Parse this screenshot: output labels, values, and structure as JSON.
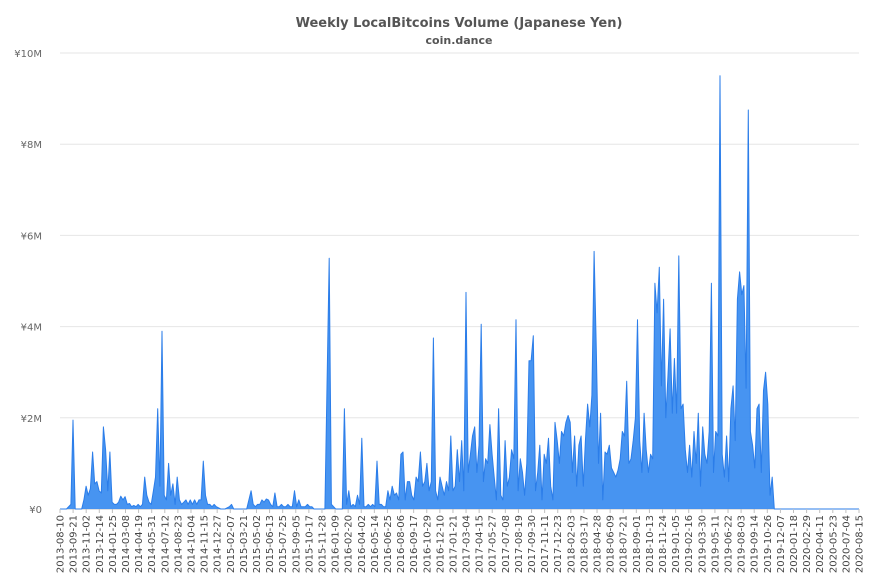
{
  "chart_data": {
    "type": "area",
    "title": "Weekly LocalBitcoins Volume (Japanese Yen)",
    "subtitle": "coin.dance",
    "xlabel": "",
    "ylabel": "",
    "ylim": [
      0,
      10000000
    ],
    "y_ticks": [
      {
        "value": 0,
        "label": "¥0"
      },
      {
        "value": 2000000,
        "label": "¥2M"
      },
      {
        "value": 4000000,
        "label": "¥4M"
      },
      {
        "value": 6000000,
        "label": "¥6M"
      },
      {
        "value": 8000000,
        "label": "¥8M"
      },
      {
        "value": 10000000,
        "label": "¥10M"
      }
    ],
    "x_start": "2013-08-10",
    "x_end": "2020-08-29",
    "x_tick_labels": [
      "2013-08-10",
      "2013-09-21",
      "2013-11-02",
      "2013-12-14",
      "2014-01-25",
      "2014-03-08",
      "2014-04-19",
      "2014-05-31",
      "2014-07-12",
      "2014-08-23",
      "2014-10-04",
      "2014-11-15",
      "2014-12-27",
      "2015-02-07",
      "2015-03-21",
      "2015-05-02",
      "2015-06-13",
      "2015-07-25",
      "2015-09-05",
      "2015-10-17",
      "2015-11-28",
      "2016-01-09",
      "2016-02-20",
      "2016-04-02",
      "2016-05-14",
      "2016-06-25",
      "2016-08-06",
      "2016-09-17",
      "2016-10-29",
      "2016-12-10",
      "2017-01-21",
      "2017-03-04",
      "2017-04-15",
      "2017-05-27",
      "2017-07-08",
      "2017-08-19",
      "2017-09-30",
      "2017-11-11",
      "2017-12-23",
      "2018-02-03",
      "2018-03-17",
      "2018-04-28",
      "2018-06-09",
      "2018-07-21",
      "2018-09-01",
      "2018-10-13",
      "2018-11-24",
      "2019-01-05",
      "2019-02-16",
      "2019-03-30",
      "2019-05-11",
      "2019-06-22",
      "2019-08-03",
      "2019-09-14",
      "2019-10-26",
      "2019-12-07",
      "2020-01-18",
      "2020-02-29",
      "2020-04-11",
      "2020-05-23",
      "2020-07-04",
      "2020-08-15"
    ],
    "series_color": "#3d8ef0",
    "points": [
      [
        "2013-08-10",
        0
      ],
      [
        "2013-08-31",
        0
      ],
      [
        "2013-09-14",
        100000
      ],
      [
        "2013-09-21",
        1950000
      ],
      [
        "2013-09-28",
        0
      ],
      [
        "2013-10-19",
        0
      ],
      [
        "2013-10-26",
        200000
      ],
      [
        "2013-11-02",
        500000
      ],
      [
        "2013-11-09",
        300000
      ],
      [
        "2013-11-16",
        450000
      ],
      [
        "2013-11-23",
        1250000
      ],
      [
        "2013-11-30",
        550000
      ],
      [
        "2013-12-07",
        600000
      ],
      [
        "2013-12-14",
        400000
      ],
      [
        "2013-12-21",
        350000
      ],
      [
        "2013-12-28",
        1800000
      ],
      [
        "2014-01-04",
        1300000
      ],
      [
        "2014-01-11",
        400000
      ],
      [
        "2014-01-18",
        1250000
      ],
      [
        "2014-01-25",
        150000
      ],
      [
        "2014-02-01",
        100000
      ],
      [
        "2014-02-08",
        100000
      ],
      [
        "2014-02-15",
        150000
      ],
      [
        "2014-02-22",
        280000
      ],
      [
        "2014-03-01",
        200000
      ],
      [
        "2014-03-08",
        270000
      ],
      [
        "2014-03-15",
        100000
      ],
      [
        "2014-03-22",
        120000
      ],
      [
        "2014-03-29",
        50000
      ],
      [
        "2014-04-05",
        80000
      ],
      [
        "2014-04-12",
        50000
      ],
      [
        "2014-04-19",
        100000
      ],
      [
        "2014-04-26",
        50000
      ],
      [
        "2014-05-03",
        100000
      ],
      [
        "2014-05-10",
        700000
      ],
      [
        "2014-05-17",
        300000
      ],
      [
        "2014-05-24",
        150000
      ],
      [
        "2014-05-31",
        100000
      ],
      [
        "2014-06-07",
        400000
      ],
      [
        "2014-06-14",
        700000
      ],
      [
        "2014-06-21",
        2200000
      ],
      [
        "2014-06-28",
        500000
      ],
      [
        "2014-07-05",
        3900000
      ],
      [
        "2014-07-12",
        300000
      ],
      [
        "2014-07-19",
        200000
      ],
      [
        "2014-07-26",
        1000000
      ],
      [
        "2014-08-02",
        300000
      ],
      [
        "2014-08-09",
        550000
      ],
      [
        "2014-08-16",
        100000
      ],
      [
        "2014-08-23",
        700000
      ],
      [
        "2014-08-30",
        200000
      ],
      [
        "2014-09-06",
        100000
      ],
      [
        "2014-09-13",
        150000
      ],
      [
        "2014-09-20",
        200000
      ],
      [
        "2014-09-27",
        100000
      ],
      [
        "2014-10-04",
        200000
      ],
      [
        "2014-10-11",
        100000
      ],
      [
        "2014-10-18",
        200000
      ],
      [
        "2014-10-25",
        100000
      ],
      [
        "2014-11-01",
        200000
      ],
      [
        "2014-11-08",
        200000
      ],
      [
        "2014-11-15",
        1050000
      ],
      [
        "2014-11-22",
        300000
      ],
      [
        "2014-11-29",
        100000
      ],
      [
        "2014-12-06",
        100000
      ],
      [
        "2014-12-13",
        50000
      ],
      [
        "2014-12-20",
        100000
      ],
      [
        "2014-12-27",
        50000
      ],
      [
        "2015-01-10",
        0
      ],
      [
        "2015-01-24",
        0
      ],
      [
        "2015-02-07",
        50000
      ],
      [
        "2015-02-14",
        100000
      ],
      [
        "2015-02-21",
        0
      ],
      [
        "2015-03-07",
        0
      ],
      [
        "2015-03-21",
        0
      ],
      [
        "2015-04-04",
        0
      ],
      [
        "2015-04-18",
        400000
      ],
      [
        "2015-04-25",
        100000
      ],
      [
        "2015-05-02",
        50000
      ],
      [
        "2015-05-09",
        100000
      ],
      [
        "2015-05-16",
        100000
      ],
      [
        "2015-05-23",
        200000
      ],
      [
        "2015-05-30",
        150000
      ],
      [
        "2015-06-06",
        220000
      ],
      [
        "2015-06-13",
        200000
      ],
      [
        "2015-06-20",
        100000
      ],
      [
        "2015-06-27",
        50000
      ],
      [
        "2015-07-04",
        350000
      ],
      [
        "2015-07-11",
        50000
      ],
      [
        "2015-07-18",
        50000
      ],
      [
        "2015-07-25",
        100000
      ],
      [
        "2015-08-01",
        50000
      ],
      [
        "2015-08-08",
        50000
      ],
      [
        "2015-08-15",
        100000
      ],
      [
        "2015-08-22",
        50000
      ],
      [
        "2015-08-29",
        50000
      ],
      [
        "2015-09-05",
        400000
      ],
      [
        "2015-09-12",
        50000
      ],
      [
        "2015-09-19",
        200000
      ],
      [
        "2015-09-26",
        50000
      ],
      [
        "2015-10-03",
        50000
      ],
      [
        "2015-10-10",
        50000
      ],
      [
        "2015-10-17",
        100000
      ],
      [
        "2015-10-24",
        50000
      ],
      [
        "2015-10-31",
        50000
      ],
      [
        "2015-11-07",
        0
      ],
      [
        "2015-11-28",
        0
      ],
      [
        "2015-12-12",
        0
      ],
      [
        "2015-12-26",
        5500000
      ],
      [
        "2016-01-02",
        100000
      ],
      [
        "2016-01-16",
        0
      ],
      [
        "2016-02-06",
        0
      ],
      [
        "2016-02-13",
        2200000
      ],
      [
        "2016-02-20",
        100000
      ],
      [
        "2016-02-27",
        400000
      ],
      [
        "2016-03-05",
        50000
      ],
      [
        "2016-03-12",
        100000
      ],
      [
        "2016-03-19",
        50000
      ],
      [
        "2016-03-26",
        300000
      ],
      [
        "2016-04-02",
        100000
      ],
      [
        "2016-04-09",
        1550000
      ],
      [
        "2016-04-16",
        50000
      ],
      [
        "2016-04-23",
        50000
      ],
      [
        "2016-04-30",
        100000
      ],
      [
        "2016-05-07",
        50000
      ],
      [
        "2016-05-14",
        100000
      ],
      [
        "2016-05-21",
        50000
      ],
      [
        "2016-05-28",
        1050000
      ],
      [
        "2016-06-04",
        100000
      ],
      [
        "2016-06-11",
        100000
      ],
      [
        "2016-06-18",
        50000
      ],
      [
        "2016-06-25",
        50000
      ],
      [
        "2016-07-02",
        400000
      ],
      [
        "2016-07-09",
        200000
      ],
      [
        "2016-07-16",
        500000
      ],
      [
        "2016-07-23",
        300000
      ],
      [
        "2016-07-30",
        350000
      ],
      [
        "2016-08-06",
        200000
      ],
      [
        "2016-08-13",
        1200000
      ],
      [
        "2016-08-20",
        1250000
      ],
      [
        "2016-08-27",
        200000
      ],
      [
        "2016-09-03",
        600000
      ],
      [
        "2016-09-10",
        600000
      ],
      [
        "2016-09-17",
        300000
      ],
      [
        "2016-09-24",
        200000
      ],
      [
        "2016-10-01",
        700000
      ],
      [
        "2016-10-08",
        600000
      ],
      [
        "2016-10-15",
        1250000
      ],
      [
        "2016-10-22",
        500000
      ],
      [
        "2016-10-29",
        600000
      ],
      [
        "2016-11-05",
        1000000
      ],
      [
        "2016-11-12",
        400000
      ],
      [
        "2016-11-19",
        600000
      ],
      [
        "2016-11-26",
        3750000
      ],
      [
        "2016-12-03",
        400000
      ],
      [
        "2016-12-10",
        200000
      ],
      [
        "2016-12-17",
        700000
      ],
      [
        "2016-12-24",
        500000
      ],
      [
        "2016-12-31",
        300000
      ],
      [
        "2017-01-07",
        600000
      ],
      [
        "2017-01-14",
        400000
      ],
      [
        "2017-01-21",
        1600000
      ],
      [
        "2017-01-28",
        400000
      ],
      [
        "2017-02-04",
        500000
      ],
      [
        "2017-02-11",
        1300000
      ],
      [
        "2017-02-18",
        600000
      ],
      [
        "2017-02-25",
        1500000
      ],
      [
        "2017-03-04",
        400000
      ],
      [
        "2017-03-11",
        4750000
      ],
      [
        "2017-03-18",
        800000
      ],
      [
        "2017-03-25",
        1200000
      ],
      [
        "2017-04-01",
        1600000
      ],
      [
        "2017-04-08",
        1800000
      ],
      [
        "2017-04-15",
        800000
      ],
      [
        "2017-04-22",
        1400000
      ],
      [
        "2017-04-29",
        4050000
      ],
      [
        "2017-05-06",
        600000
      ],
      [
        "2017-05-13",
        1100000
      ],
      [
        "2017-05-20",
        1000000
      ],
      [
        "2017-05-27",
        1850000
      ],
      [
        "2017-06-03",
        1200000
      ],
      [
        "2017-06-10",
        700000
      ],
      [
        "2017-06-17",
        200000
      ],
      [
        "2017-06-24",
        2200000
      ],
      [
        "2017-07-01",
        300000
      ],
      [
        "2017-07-08",
        200000
      ],
      [
        "2017-07-15",
        1500000
      ],
      [
        "2017-07-22",
        500000
      ],
      [
        "2017-07-29",
        700000
      ],
      [
        "2017-08-05",
        1300000
      ],
      [
        "2017-08-12",
        1100000
      ],
      [
        "2017-08-19",
        4150000
      ],
      [
        "2017-08-26",
        400000
      ],
      [
        "2017-09-02",
        1100000
      ],
      [
        "2017-09-09",
        800000
      ],
      [
        "2017-09-16",
        300000
      ],
      [
        "2017-09-23",
        1000000
      ],
      [
        "2017-09-30",
        3250000
      ],
      [
        "2017-10-07",
        3250000
      ],
      [
        "2017-10-14",
        3800000
      ],
      [
        "2017-10-21",
        400000
      ],
      [
        "2017-10-28",
        800000
      ],
      [
        "2017-11-04",
        1400000
      ],
      [
        "2017-11-11",
        200000
      ],
      [
        "2017-11-18",
        1200000
      ],
      [
        "2017-11-25",
        1000000
      ],
      [
        "2017-12-02",
        1550000
      ],
      [
        "2017-12-09",
        500000
      ],
      [
        "2017-12-16",
        200000
      ],
      [
        "2017-12-23",
        1900000
      ],
      [
        "2017-12-30",
        1500000
      ],
      [
        "2018-01-06",
        1000000
      ],
      [
        "2018-01-13",
        1700000
      ],
      [
        "2018-01-20",
        1600000
      ],
      [
        "2018-01-27",
        1900000
      ],
      [
        "2018-02-03",
        2050000
      ],
      [
        "2018-02-10",
        1900000
      ],
      [
        "2018-02-17",
        800000
      ],
      [
        "2018-02-24",
        1600000
      ],
      [
        "2018-03-03",
        500000
      ],
      [
        "2018-03-10",
        1400000
      ],
      [
        "2018-03-17",
        1600000
      ],
      [
        "2018-03-24",
        500000
      ],
      [
        "2018-03-31",
        1500000
      ],
      [
        "2018-04-07",
        2300000
      ],
      [
        "2018-04-14",
        1800000
      ],
      [
        "2018-04-21",
        2500000
      ],
      [
        "2018-04-28",
        5650000
      ],
      [
        "2018-05-05",
        3500000
      ],
      [
        "2018-05-12",
        1000000
      ],
      [
        "2018-05-19",
        2100000
      ],
      [
        "2018-05-26",
        200000
      ],
      [
        "2018-06-02",
        1250000
      ],
      [
        "2018-06-09",
        1200000
      ],
      [
        "2018-06-16",
        1400000
      ],
      [
        "2018-06-23",
        900000
      ],
      [
        "2018-06-30",
        800000
      ],
      [
        "2018-07-07",
        700000
      ],
      [
        "2018-07-14",
        850000
      ],
      [
        "2018-07-21",
        1100000
      ],
      [
        "2018-07-28",
        1700000
      ],
      [
        "2018-08-04",
        1600000
      ],
      [
        "2018-08-11",
        2800000
      ],
      [
        "2018-08-18",
        1000000
      ],
      [
        "2018-08-25",
        1100000
      ],
      [
        "2018-09-01",
        1500000
      ],
      [
        "2018-09-08",
        2000000
      ],
      [
        "2018-09-15",
        4150000
      ],
      [
        "2018-09-22",
        1500000
      ],
      [
        "2018-09-29",
        800000
      ],
      [
        "2018-10-06",
        2100000
      ],
      [
        "2018-10-13",
        1300000
      ],
      [
        "2018-10-20",
        800000
      ],
      [
        "2018-10-27",
        1200000
      ],
      [
        "2018-11-03",
        1100000
      ],
      [
        "2018-11-10",
        4950000
      ],
      [
        "2018-11-17",
        4300000
      ],
      [
        "2018-11-24",
        5300000
      ],
      [
        "2018-12-01",
        2700000
      ],
      [
        "2018-12-08",
        4600000
      ],
      [
        "2018-12-15",
        2000000
      ],
      [
        "2018-12-22",
        2900000
      ],
      [
        "2018-12-29",
        3950000
      ],
      [
        "2019-01-05",
        2100000
      ],
      [
        "2019-01-12",
        3300000
      ],
      [
        "2019-01-19",
        2100000
      ],
      [
        "2019-01-26",
        5550000
      ],
      [
        "2019-02-02",
        2200000
      ],
      [
        "2019-02-09",
        2300000
      ],
      [
        "2019-02-16",
        1300000
      ],
      [
        "2019-02-23",
        800000
      ],
      [
        "2019-03-02",
        1400000
      ],
      [
        "2019-03-09",
        700000
      ],
      [
        "2019-03-16",
        1700000
      ],
      [
        "2019-03-23",
        1000000
      ],
      [
        "2019-03-30",
        2100000
      ],
      [
        "2019-04-06",
        500000
      ],
      [
        "2019-04-13",
        1800000
      ],
      [
        "2019-04-20",
        1200000
      ],
      [
        "2019-04-27",
        1000000
      ],
      [
        "2019-05-04",
        1700000
      ],
      [
        "2019-05-11",
        4950000
      ],
      [
        "2019-05-18",
        800000
      ],
      [
        "2019-05-25",
        1700000
      ],
      [
        "2019-06-01",
        1600000
      ],
      [
        "2019-06-08",
        9500000
      ],
      [
        "2019-06-15",
        1200000
      ],
      [
        "2019-06-22",
        700000
      ],
      [
        "2019-06-29",
        1600000
      ],
      [
        "2019-07-06",
        600000
      ],
      [
        "2019-07-13",
        2200000
      ],
      [
        "2019-07-20",
        2700000
      ],
      [
        "2019-07-27",
        1500000
      ],
      [
        "2019-08-03",
        4600000
      ],
      [
        "2019-08-10",
        5200000
      ],
      [
        "2019-08-17",
        4700000
      ],
      [
        "2019-08-24",
        4900000
      ],
      [
        "2019-08-31",
        2650000
      ],
      [
        "2019-09-07",
        8750000
      ],
      [
        "2019-09-14",
        1700000
      ],
      [
        "2019-09-21",
        1400000
      ],
      [
        "2019-09-28",
        900000
      ],
      [
        "2019-10-05",
        2200000
      ],
      [
        "2019-10-12",
        2300000
      ],
      [
        "2019-10-19",
        800000
      ],
      [
        "2019-10-26",
        2600000
      ],
      [
        "2019-11-02",
        3000000
      ],
      [
        "2019-11-09",
        2300000
      ],
      [
        "2019-11-16",
        300000
      ],
      [
        "2019-11-23",
        700000
      ],
      [
        "2019-11-30",
        0
      ],
      [
        "2020-08-29",
        0
      ]
    ]
  }
}
